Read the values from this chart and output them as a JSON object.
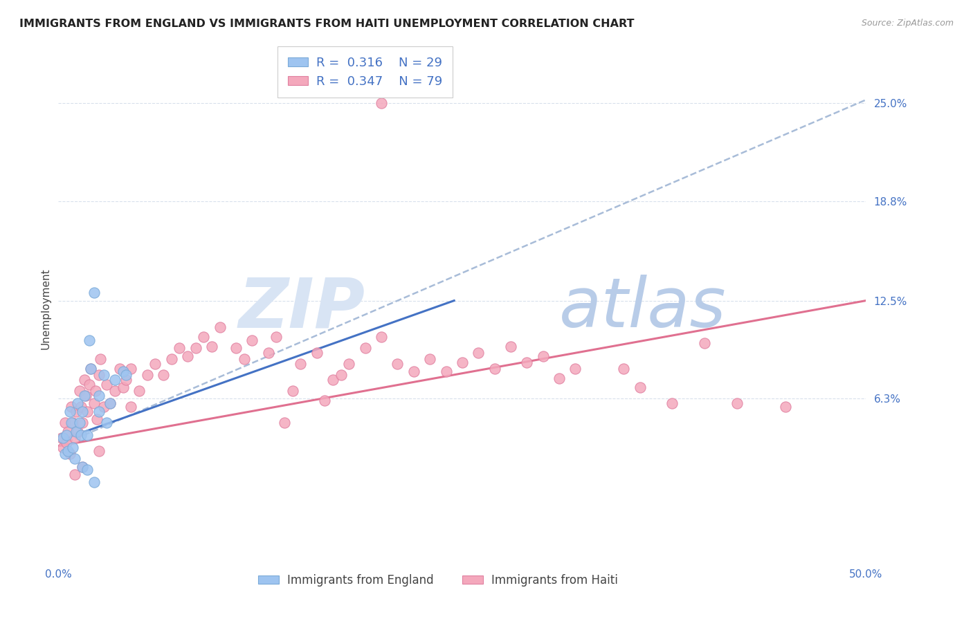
{
  "title": "IMMIGRANTS FROM ENGLAND VS IMMIGRANTS FROM HAITI UNEMPLOYMENT CORRELATION CHART",
  "source": "Source: ZipAtlas.com",
  "ylabel": "Unemployment",
  "xlim": [
    0.0,
    0.5
  ],
  "ylim": [
    -0.04,
    0.28
  ],
  "yticks": [
    0.063,
    0.125,
    0.188,
    0.25
  ],
  "ytick_labels": [
    "6.3%",
    "12.5%",
    "18.8%",
    "25.0%"
  ],
  "xticks": [
    0.0,
    0.5
  ],
  "xtick_labels": [
    "0.0%",
    "50.0%"
  ],
  "england_scatter": [
    [
      0.003,
      0.038
    ],
    [
      0.004,
      0.028
    ],
    [
      0.005,
      0.04
    ],
    [
      0.006,
      0.03
    ],
    [
      0.007,
      0.055
    ],
    [
      0.008,
      0.048
    ],
    [
      0.009,
      0.032
    ],
    [
      0.01,
      0.025
    ],
    [
      0.011,
      0.042
    ],
    [
      0.012,
      0.06
    ],
    [
      0.013,
      0.048
    ],
    [
      0.014,
      0.04
    ],
    [
      0.015,
      0.055
    ],
    [
      0.016,
      0.065
    ],
    [
      0.018,
      0.04
    ],
    [
      0.019,
      0.1
    ],
    [
      0.02,
      0.082
    ],
    [
      0.022,
      0.13
    ],
    [
      0.025,
      0.065
    ],
    [
      0.028,
      0.078
    ],
    [
      0.032,
      0.06
    ],
    [
      0.035,
      0.075
    ],
    [
      0.04,
      0.08
    ],
    [
      0.042,
      0.078
    ],
    [
      0.025,
      0.055
    ],
    [
      0.03,
      0.048
    ],
    [
      0.015,
      0.02
    ],
    [
      0.018,
      0.018
    ],
    [
      0.022,
      0.01
    ]
  ],
  "haiti_scatter": [
    [
      0.002,
      0.038
    ],
    [
      0.003,
      0.032
    ],
    [
      0.004,
      0.048
    ],
    [
      0.005,
      0.035
    ],
    [
      0.006,
      0.042
    ],
    [
      0.007,
      0.028
    ],
    [
      0.008,
      0.058
    ],
    [
      0.009,
      0.048
    ],
    [
      0.01,
      0.038
    ],
    [
      0.011,
      0.055
    ],
    [
      0.012,
      0.042
    ],
    [
      0.013,
      0.068
    ],
    [
      0.014,
      0.058
    ],
    [
      0.015,
      0.048
    ],
    [
      0.016,
      0.075
    ],
    [
      0.017,
      0.065
    ],
    [
      0.018,
      0.055
    ],
    [
      0.019,
      0.072
    ],
    [
      0.02,
      0.082
    ],
    [
      0.022,
      0.06
    ],
    [
      0.023,
      0.068
    ],
    [
      0.024,
      0.05
    ],
    [
      0.025,
      0.078
    ],
    [
      0.026,
      0.088
    ],
    [
      0.028,
      0.058
    ],
    [
      0.03,
      0.072
    ],
    [
      0.032,
      0.06
    ],
    [
      0.035,
      0.068
    ],
    [
      0.038,
      0.082
    ],
    [
      0.04,
      0.07
    ],
    [
      0.042,
      0.075
    ],
    [
      0.045,
      0.082
    ],
    [
      0.05,
      0.068
    ],
    [
      0.055,
      0.078
    ],
    [
      0.06,
      0.085
    ],
    [
      0.065,
      0.078
    ],
    [
      0.07,
      0.088
    ],
    [
      0.075,
      0.095
    ],
    [
      0.08,
      0.09
    ],
    [
      0.085,
      0.095
    ],
    [
      0.09,
      0.102
    ],
    [
      0.095,
      0.096
    ],
    [
      0.1,
      0.108
    ],
    [
      0.11,
      0.095
    ],
    [
      0.115,
      0.088
    ],
    [
      0.12,
      0.1
    ],
    [
      0.13,
      0.092
    ],
    [
      0.135,
      0.102
    ],
    [
      0.14,
      0.048
    ],
    [
      0.145,
      0.068
    ],
    [
      0.15,
      0.085
    ],
    [
      0.16,
      0.092
    ],
    [
      0.165,
      0.062
    ],
    [
      0.17,
      0.075
    ],
    [
      0.175,
      0.078
    ],
    [
      0.18,
      0.085
    ],
    [
      0.19,
      0.095
    ],
    [
      0.2,
      0.102
    ],
    [
      0.21,
      0.085
    ],
    [
      0.22,
      0.08
    ],
    [
      0.23,
      0.088
    ],
    [
      0.24,
      0.08
    ],
    [
      0.25,
      0.086
    ],
    [
      0.26,
      0.092
    ],
    [
      0.27,
      0.082
    ],
    [
      0.28,
      0.096
    ],
    [
      0.29,
      0.086
    ],
    [
      0.3,
      0.09
    ],
    [
      0.31,
      0.076
    ],
    [
      0.32,
      0.082
    ],
    [
      0.35,
      0.082
    ],
    [
      0.36,
      0.07
    ],
    [
      0.38,
      0.06
    ],
    [
      0.4,
      0.098
    ],
    [
      0.42,
      0.06
    ],
    [
      0.2,
      0.25
    ],
    [
      0.45,
      0.058
    ],
    [
      0.045,
      0.058
    ],
    [
      0.025,
      0.03
    ],
    [
      0.015,
      0.02
    ],
    [
      0.01,
      0.015
    ]
  ],
  "england_line": [
    [
      0.005,
      0.038
    ],
    [
      0.245,
      0.125
    ]
  ],
  "haiti_line": [
    [
      0.0,
      0.033
    ],
    [
      0.5,
      0.125
    ]
  ],
  "dashed_line": [
    [
      0.0,
      0.033
    ],
    [
      0.5,
      0.252
    ]
  ],
  "england_line_color": "#4472c4",
  "haiti_line_color": "#e07090",
  "england_scatter_color": "#9ec4f0",
  "england_scatter_edge": "#7aaad8",
  "haiti_scatter_color": "#f4a8bc",
  "haiti_scatter_edge": "#e080a0",
  "dashed_line_color": "#a8bcd8",
  "grid_color": "#d8e0ec",
  "tick_color": "#4472c4",
  "title_color": "#222222",
  "source_color": "#999999",
  "ylabel_color": "#444444",
  "background_color": "#ffffff",
  "legend_text_color_blue": "#4472c4",
  "legend_black": "#333333",
  "watermark_zip_color": "#d8e4f4",
  "watermark_atlas_color": "#b8cce8",
  "title_fontsize": 11.5,
  "tick_fontsize": 11,
  "ylabel_fontsize": 11,
  "scatter_size": 120
}
